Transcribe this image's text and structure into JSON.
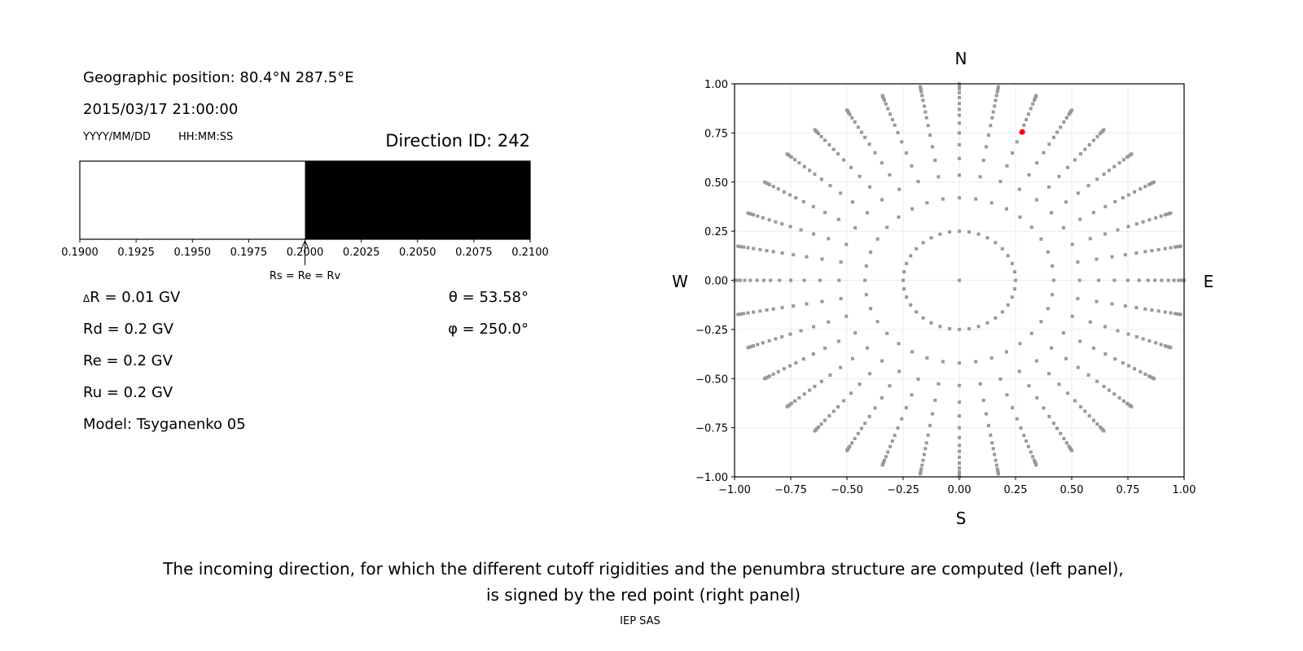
{
  "left_panel": {
    "geo_position": "Geographic position: 80.4°N 287.5°E",
    "datetime": "2015/03/17 21:00:00",
    "date_format": "YYYY/MM/DD",
    "time_format": "HH:MM:SS",
    "direction_id": "Direction ID: 242",
    "delta_r": "R = 0.01 GV",
    "delta_symbol": "Δ",
    "rd": "Rd = 0.2 GV",
    "re": "Re = 0.2 GV",
    "ru": "Ru = 0.2 GV",
    "model": "Model: Tsyganenko 05",
    "theta": "θ = 53.58°",
    "phi": "φ = 250.0°"
  },
  "chart_data": [
    {
      "type": "bar",
      "xlim": [
        0.19,
        0.21
      ],
      "xticks": [
        "0.1900",
        "0.1925",
        "0.1950",
        "0.1975",
        "0.2000",
        "0.2025",
        "0.2050",
        "0.2075",
        "0.2100"
      ],
      "segments": [
        {
          "from": 0.19,
          "to": 0.2,
          "color": "#ffffff"
        },
        {
          "from": 0.2,
          "to": 0.21,
          "color": "#000000"
        }
      ],
      "annotation": {
        "x": 0.2,
        "text": "Rs = Re = Rv"
      }
    },
    {
      "type": "scatter",
      "xlim": [
        -1,
        1
      ],
      "ylim": [
        -1,
        1
      ],
      "grid": true,
      "xticks": [
        "−1.00",
        "−0.75",
        "−0.50",
        "−0.25",
        "0.00",
        "0.25",
        "0.50",
        "0.75",
        "1.00"
      ],
      "yticks": [
        "−1.00",
        "−0.75",
        "−0.50",
        "−0.25",
        "0.00",
        "0.25",
        "0.50",
        "0.75",
        "1.00"
      ],
      "compass": {
        "n": "N",
        "s": "S",
        "w": "W",
        "e": "E"
      },
      "grid_points": {
        "pattern": "radial rays",
        "azimuth_step_deg": 10,
        "radii": [
          0.25,
          0.42,
          0.535,
          0.62,
          0.69,
          0.75,
          0.8,
          0.84,
          0.87,
          0.9,
          0.93,
          0.955,
          0.975,
          0.985,
          0.993,
          1.0
        ],
        "include_center": true,
        "color": "#999999"
      },
      "highlight_point": {
        "x": 0.28,
        "y": 0.755,
        "color": "#ff0000"
      }
    }
  ],
  "caption": {
    "line1": "The incoming direction, for which the different cutoff rigidities and the penumbra structure are computed (left panel),",
    "line2": "is signed by the red point (right panel)"
  },
  "footer": "IEP SAS"
}
